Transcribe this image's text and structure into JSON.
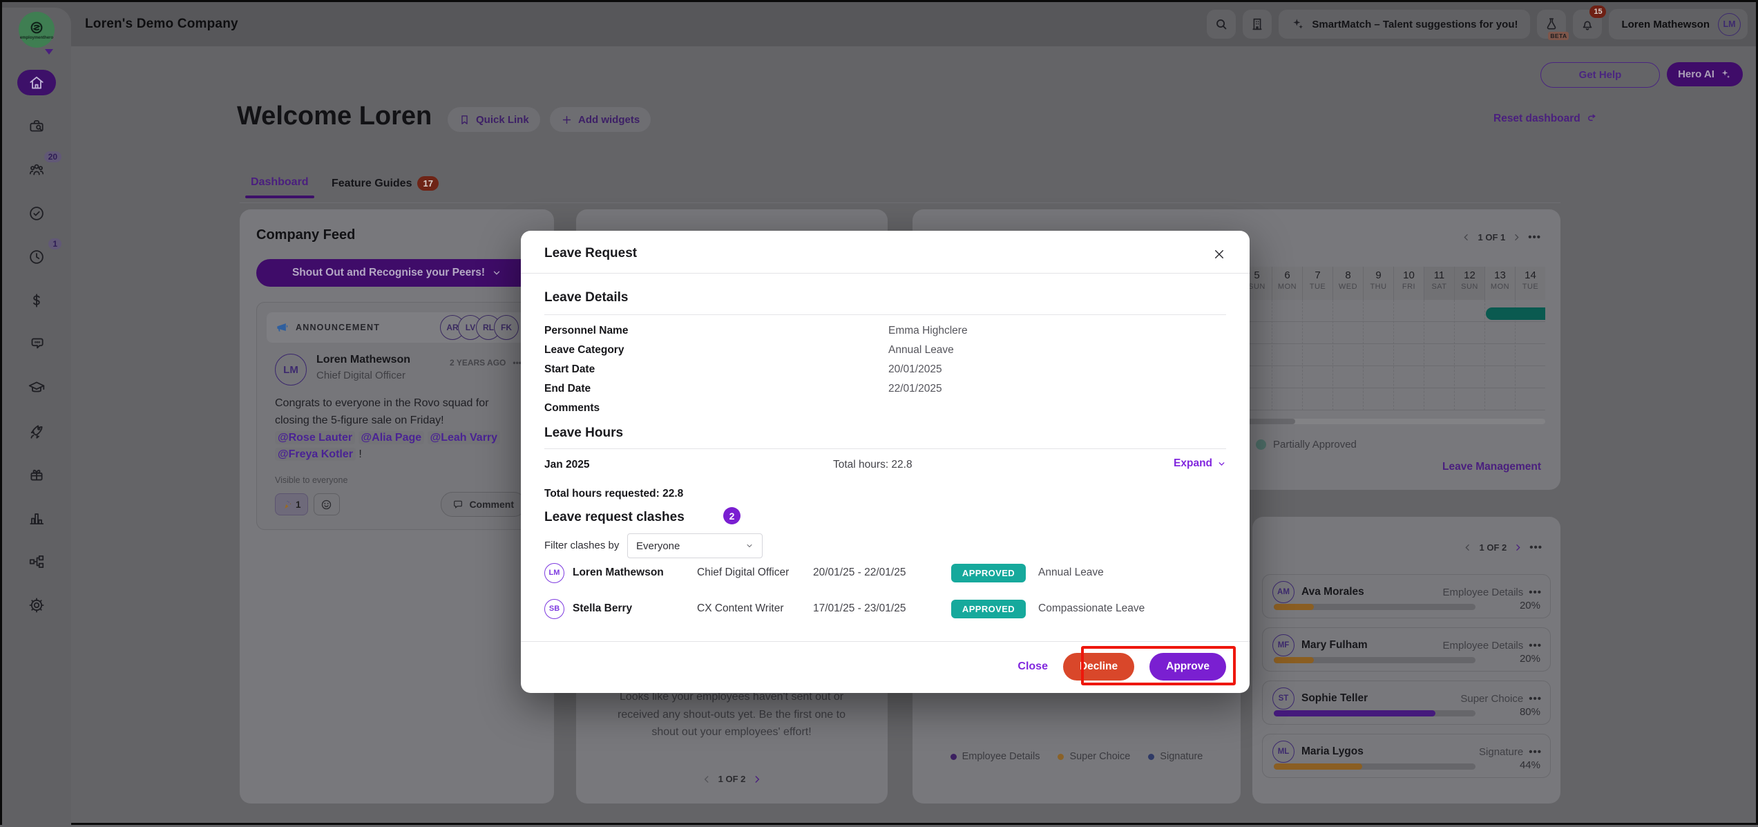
{
  "topbar": {
    "company_name": "Loren's Demo Company",
    "logo_text": "employmenthero",
    "smartmatch_label": "SmartMatch – Talent suggestions for you!",
    "beta_label": "BETA",
    "notification_count": "15",
    "user_name": "Loren Mathewson",
    "user_initials": "LM"
  },
  "sidebar": {
    "people_badge": "20",
    "time_badge": "1",
    "items": [
      "home",
      "recruitment",
      "people",
      "compliance",
      "time",
      "payroll",
      "messages",
      "learning",
      "launch",
      "benefits",
      "reports",
      "org-chart",
      "settings"
    ]
  },
  "page_header": {
    "welcome_title": "Welcome Loren",
    "quick_link_label": "Quick Link",
    "add_widgets_label": "Add widgets",
    "reset_dashboard_label": "Reset dashboard",
    "get_help_label": "Get Help",
    "hero_ai_label": "Hero AI"
  },
  "tabs": {
    "dashboard": "Dashboard",
    "feature_guides": "Feature Guides",
    "feature_guides_badge": "17"
  },
  "feed": {
    "title": "Company Feed",
    "shoutout_button": "Shout Out and Recognise your Peers!",
    "announcement_label": "ANNOUNCEMENT",
    "announcement_avatars": [
      "AR",
      "LV",
      "RL",
      "FK"
    ],
    "post": {
      "author": "Loren Mathewson",
      "author_initials": "LM",
      "role": "Chief Digital Officer",
      "time_ago": "2 YEARS AGO",
      "more_label": "•••",
      "text": "Congrats to everyone in the Rovo squad for closing the 5-figure sale on Friday!",
      "mentions": [
        "@Rose Lauter",
        "@Alia Page",
        "@Leah Varry",
        "@Freya Kotler"
      ],
      "mentions_suffix": "!",
      "visibility": "Visible to everyone",
      "reaction_count": "1",
      "comment_label": "Comment"
    }
  },
  "shoutouts_widget": {
    "empty_text": "Looks like your employees haven't sent out or received any shout-outs yet. Be the first one to shout out your employees' effort!",
    "pagination": "1 OF 2"
  },
  "calendar_widget": {
    "pagination": "1 OF 1",
    "more_label": "•••",
    "days": [
      {
        "num": "5",
        "name": "SUN"
      },
      {
        "num": "6",
        "name": "MON"
      },
      {
        "num": "7",
        "name": "TUE"
      },
      {
        "num": "8",
        "name": "WED"
      },
      {
        "num": "9",
        "name": "THU"
      },
      {
        "num": "10",
        "name": "FRI"
      },
      {
        "num": "11",
        "name": "SAT"
      },
      {
        "num": "12",
        "name": "SUN"
      },
      {
        "num": "13",
        "name": "MON"
      },
      {
        "num": "14",
        "name": "TUE"
      }
    ],
    "legend_label": "Partially Approved",
    "link_label": "Leave Management",
    "bar_color": "#11897b"
  },
  "tasks_widget": {
    "pagination": "1 OF 2",
    "more_label": "•••",
    "people": [
      {
        "initials": "AM",
        "name": "Ava Morales",
        "task": "Employee Details",
        "percent_label": "20%",
        "percent": 20
      },
      {
        "initials": "MF",
        "name": "Mary Fulham",
        "task": "Employee Details",
        "percent_label": "20%",
        "percent": 20
      },
      {
        "initials": "ST",
        "name": "Sophie Teller",
        "task": "Super Choice",
        "percent_label": "80%",
        "percent": 80
      },
      {
        "initials": "ML",
        "name": "Maria Lygos",
        "task": "Signature",
        "percent_label": "44%",
        "percent": 44
      }
    ]
  },
  "donut_widget": {
    "legend": [
      {
        "label": "Employee Details",
        "color": "#3b2060"
      },
      {
        "label": "Super Choice",
        "color": "#8a6228"
      },
      {
        "label": "Signature",
        "color": "#2f3a66"
      }
    ]
  },
  "modal": {
    "title": "Leave Request",
    "details": {
      "heading": "Leave Details",
      "rows": [
        {
          "label": "Personnel Name",
          "value": "Emma Highclere"
        },
        {
          "label": "Leave Category",
          "value": "Annual Leave"
        },
        {
          "label": "Start Date",
          "value": "20/01/2025"
        },
        {
          "label": "End Date",
          "value": "22/01/2025"
        },
        {
          "label": "Comments",
          "value": ""
        }
      ]
    },
    "hours": {
      "heading": "Leave Hours",
      "month": "Jan 2025",
      "total": "Total hours: 22.8",
      "expand_label": "Expand",
      "total_requested": "Total hours requested: 22.8"
    },
    "clashes": {
      "heading": "Leave request clashes",
      "count": "2",
      "filter_label": "Filter clashes by",
      "filter_value": "Everyone",
      "rows": [
        {
          "initials": "LM",
          "name": "Loren Mathewson",
          "role": "Chief Digital Officer",
          "dates": "20/01/25 - 22/01/25",
          "status": "APPROVED",
          "type": "Annual Leave"
        },
        {
          "initials": "SB",
          "name": "Stella Berry",
          "role": "CX Content Writer",
          "dates": "17/01/25 - 23/01/25",
          "status": "APPROVED",
          "type": "Compassionate Leave"
        }
      ]
    },
    "footer": {
      "close_label": "Close",
      "decline_label": "Decline",
      "approve_label": "Approve"
    }
  },
  "colors": {
    "brand_purple": "#7a1fd1",
    "decline_red": "#d9472a",
    "approved_teal": "#16a99c",
    "annotation_red": "#ee170b",
    "progress_amber": "#8a5e22",
    "progress_purple": "#451a7c"
  }
}
